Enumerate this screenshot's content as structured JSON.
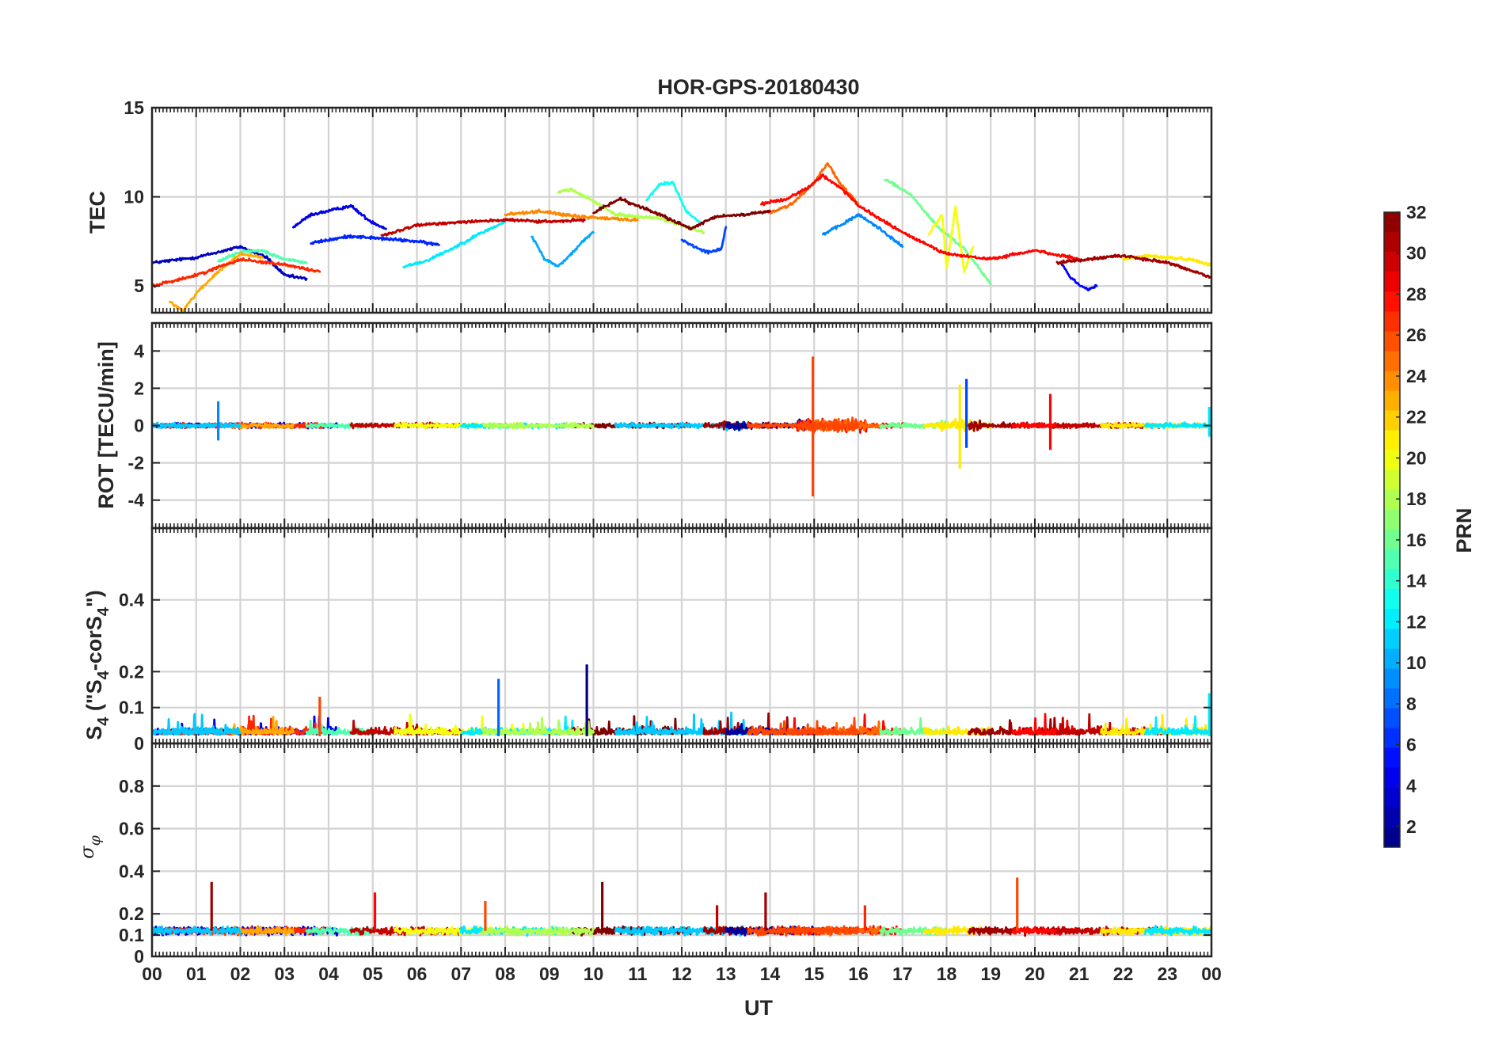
{
  "chart_data": [
    {
      "type": "line",
      "id": "tec",
      "title": "HOR-GPS-20180430",
      "ylabel": "TEC",
      "ylim": [
        3.5,
        15
      ],
      "yticks": [
        5,
        10,
        15
      ],
      "ytick_labels": [
        "5",
        "10",
        "15"
      ],
      "xlim": [
        0,
        24
      ],
      "note": "Values read approximately from the figure; one trace per GPS satellite (PRN), color = PRN",
      "series": [
        {
          "prn": 3,
          "x": [
            0.0,
            1.0,
            2.0,
            2.6,
            3.0,
            3.5
          ],
          "y": [
            6.3,
            6.6,
            7.2,
            6.6,
            5.6,
            5.4
          ]
        },
        {
          "prn": 4,
          "x": [
            3.2,
            3.6,
            4.0,
            4.5,
            4.9,
            5.3
          ],
          "y": [
            8.3,
            9.0,
            9.2,
            9.5,
            8.7,
            8.2
          ]
        },
        {
          "prn": 5,
          "x": [
            20.6,
            20.8,
            21.0,
            21.2,
            21.4
          ],
          "y": [
            6.3,
            5.5,
            5.1,
            4.8,
            5.0
          ]
        },
        {
          "prn": 6,
          "x": [
            3.6,
            4.5,
            5.5,
            6.0,
            6.5
          ],
          "y": [
            7.4,
            7.8,
            7.6,
            7.5,
            7.3
          ]
        },
        {
          "prn": 7,
          "x": [
            12.0,
            12.3,
            12.6,
            12.9,
            13.0
          ],
          "y": [
            7.6,
            7.2,
            6.9,
            7.1,
            8.3
          ]
        },
        {
          "prn": 9,
          "x": [
            15.2,
            15.6,
            16.0,
            16.5,
            17.0
          ],
          "y": [
            7.9,
            8.4,
            9.0,
            8.2,
            7.2
          ]
        },
        {
          "prn": 10,
          "x": [
            8.6,
            8.9,
            9.2,
            9.5,
            9.8,
            10.0
          ],
          "y": [
            7.8,
            6.5,
            6.1,
            6.8,
            7.6,
            8.0
          ]
        },
        {
          "prn": 12,
          "x": [
            5.7,
            6.2,
            6.8,
            7.4,
            8.0
          ],
          "y": [
            6.1,
            6.4,
            7.1,
            7.9,
            8.6
          ]
        },
        {
          "prn": 13,
          "x": [
            11.2,
            11.5,
            11.8,
            12.1,
            12.4
          ],
          "y": [
            9.8,
            10.7,
            10.8,
            9.2,
            8.6
          ]
        },
        {
          "prn": 15,
          "x": [
            1.5,
            2.0,
            2.5,
            3.0,
            3.5
          ],
          "y": [
            6.4,
            6.9,
            7.0,
            6.5,
            6.3
          ]
        },
        {
          "prn": 16,
          "x": [
            16.6,
            17.2,
            17.8,
            18.4,
            19.0
          ],
          "y": [
            11.0,
            10.1,
            8.3,
            7.1,
            5.1
          ]
        },
        {
          "prn": 18,
          "x": [
            9.2,
            9.5,
            9.9,
            10.5,
            11.5,
            12.5
          ],
          "y": [
            10.3,
            10.4,
            9.9,
            9.0,
            8.8,
            8.0
          ]
        },
        {
          "prn": 20,
          "x": [
            17.6,
            17.9,
            18.0,
            18.2,
            18.4,
            18.6
          ],
          "y": [
            7.9,
            9.0,
            6.0,
            9.4,
            5.8,
            7.2
          ]
        },
        {
          "prn": 21,
          "x": [
            22.0,
            22.5,
            23.0,
            23.5,
            24.0
          ],
          "y": [
            6.5,
            6.7,
            6.6,
            6.5,
            6.2
          ]
        },
        {
          "prn": 23,
          "x": [
            0.4,
            0.7,
            1.0,
            1.5,
            2.0,
            2.5
          ],
          "y": [
            4.1,
            3.6,
            4.6,
            5.8,
            6.8,
            6.6
          ]
        },
        {
          "prn": 24,
          "x": [
            8.0,
            8.8,
            9.6,
            10.2,
            11.0
          ],
          "y": [
            9.0,
            9.2,
            8.9,
            8.8,
            8.7
          ]
        },
        {
          "prn": 25,
          "x": [
            14.0,
            14.5,
            15.0,
            15.3,
            15.6,
            16.0
          ],
          "y": [
            9.1,
            9.6,
            10.8,
            11.9,
            10.7,
            9.6
          ]
        },
        {
          "prn": 27,
          "x": [
            0.0,
            1.0,
            2.0,
            3.0,
            3.8
          ],
          "y": [
            5.0,
            5.6,
            6.5,
            6.2,
            5.8
          ]
        },
        {
          "prn": 28,
          "x": [
            13.8,
            14.4,
            14.9,
            15.2,
            15.6,
            16.0,
            17.0,
            18.0,
            19.0,
            20.0,
            21.0
          ],
          "y": [
            9.6,
            9.9,
            10.6,
            11.2,
            10.5,
            9.5,
            8.0,
            6.8,
            6.5,
            7.0,
            6.5
          ]
        },
        {
          "prn": 30,
          "x": [
            5.2,
            6.0,
            7.0,
            8.0,
            9.0,
            9.8
          ],
          "y": [
            7.8,
            8.4,
            8.6,
            8.7,
            8.6,
            8.7
          ]
        },
        {
          "prn": 31,
          "x": [
            20.5,
            21.5,
            22.0,
            23.0,
            24.0
          ],
          "y": [
            6.3,
            6.6,
            6.7,
            6.3,
            5.5
          ]
        },
        {
          "prn": 32,
          "x": [
            10.0,
            10.6,
            11.0,
            11.6,
            12.2,
            12.8,
            13.4,
            14.0
          ],
          "y": [
            9.1,
            9.9,
            9.5,
            8.9,
            8.2,
            8.9,
            9.0,
            9.2
          ]
        }
      ]
    },
    {
      "type": "line",
      "id": "rot",
      "ylabel": "ROT [TECU/min]",
      "ylim": [
        -5.5,
        5.5
      ],
      "yticks": [
        -4,
        -2,
        0,
        2,
        4
      ],
      "ytick_labels": [
        "-4",
        "-2",
        "0",
        "2",
        "4"
      ],
      "xlim": [
        0,
        24
      ],
      "note": "Noise around 0 with noted spikes",
      "spikes": [
        {
          "prn": 26,
          "x": 14.97,
          "ymin": -3.8,
          "ymax": 3.7
        },
        {
          "prn": 21,
          "x": 18.3,
          "ymin": -2.3,
          "ymax": 2.2
        },
        {
          "prn": 7,
          "x": 18.45,
          "ymin": -1.2,
          "ymax": 2.5
        },
        {
          "prn": 28,
          "x": 20.35,
          "ymin": -1.3,
          "ymax": 1.7
        },
        {
          "prn": 9,
          "x": 1.5,
          "ymin": -0.8,
          "ymax": 1.3
        },
        {
          "prn": 12,
          "x": 23.95,
          "ymin": -0.6,
          "ymax": 1.0
        }
      ]
    },
    {
      "type": "line",
      "id": "s4",
      "ylabel": "S4 (\"S4-corS4\")",
      "ylim": [
        0,
        0.6
      ],
      "yticks": [
        0,
        0.1,
        0.2,
        0.4
      ],
      "ytick_labels": [
        "0",
        "0.1",
        "0.2",
        "0.4"
      ],
      "xlim": [
        0,
        24
      ],
      "note": "Mostly 0.01-0.06 with noted spikes",
      "spikes": [
        {
          "prn": 8,
          "x": 7.85,
          "y": 0.18
        },
        {
          "prn": 1,
          "x": 9.85,
          "y": 0.22
        },
        {
          "prn": 26,
          "x": 3.8,
          "y": 0.13
        },
        {
          "prn": 12,
          "x": 23.95,
          "y": 0.14
        }
      ]
    },
    {
      "type": "line",
      "id": "sigma_phi",
      "ylabel": "σφ",
      "ylim": [
        0,
        1
      ],
      "yticks": [
        0,
        0.1,
        0.2,
        0.4,
        0.6,
        0.8
      ],
      "ytick_labels": [
        "0",
        "0.1",
        "0.2",
        "0.4",
        "0.6",
        "0.8"
      ],
      "xlim": [
        0,
        24
      ],
      "xlabel": "UT",
      "xticks": [
        0,
        1,
        2,
        3,
        4,
        5,
        6,
        7,
        8,
        9,
        10,
        11,
        12,
        13,
        14,
        15,
        16,
        17,
        18,
        19,
        20,
        21,
        22,
        23,
        24
      ],
      "xtick_labels": [
        "00",
        "01",
        "02",
        "03",
        "04",
        "05",
        "06",
        "07",
        "08",
        "09",
        "10",
        "11",
        "12",
        "13",
        "14",
        "15",
        "16",
        "17",
        "18",
        "19",
        "20",
        "21",
        "22",
        "23",
        "00"
      ],
      "note": "Baseline ~0.12 with noted spikes",
      "spikes": [
        {
          "prn": 31,
          "x": 1.35,
          "y": 0.35
        },
        {
          "prn": 28,
          "x": 5.05,
          "y": 0.3
        },
        {
          "prn": 32,
          "x": 10.2,
          "y": 0.35
        },
        {
          "prn": 31,
          "x": 13.9,
          "y": 0.3
        },
        {
          "prn": 27,
          "x": 16.15,
          "y": 0.24
        },
        {
          "prn": 26,
          "x": 19.6,
          "y": 0.37
        },
        {
          "prn": 26,
          "x": 7.55,
          "y": 0.26
        },
        {
          "prn": 30,
          "x": 12.8,
          "y": 0.24
        }
      ]
    }
  ],
  "colorbar": {
    "label": "PRN",
    "min": 1,
    "max": 32,
    "ticks": [
      2,
      4,
      6,
      8,
      10,
      12,
      14,
      16,
      18,
      20,
      22,
      24,
      26,
      28,
      30,
      32
    ],
    "tick_labels": [
      "2",
      "4",
      "6",
      "8",
      "10",
      "12",
      "14",
      "16",
      "18",
      "20",
      "22",
      "24",
      "26",
      "28",
      "30",
      "32"
    ],
    "colormap": "jet"
  }
}
